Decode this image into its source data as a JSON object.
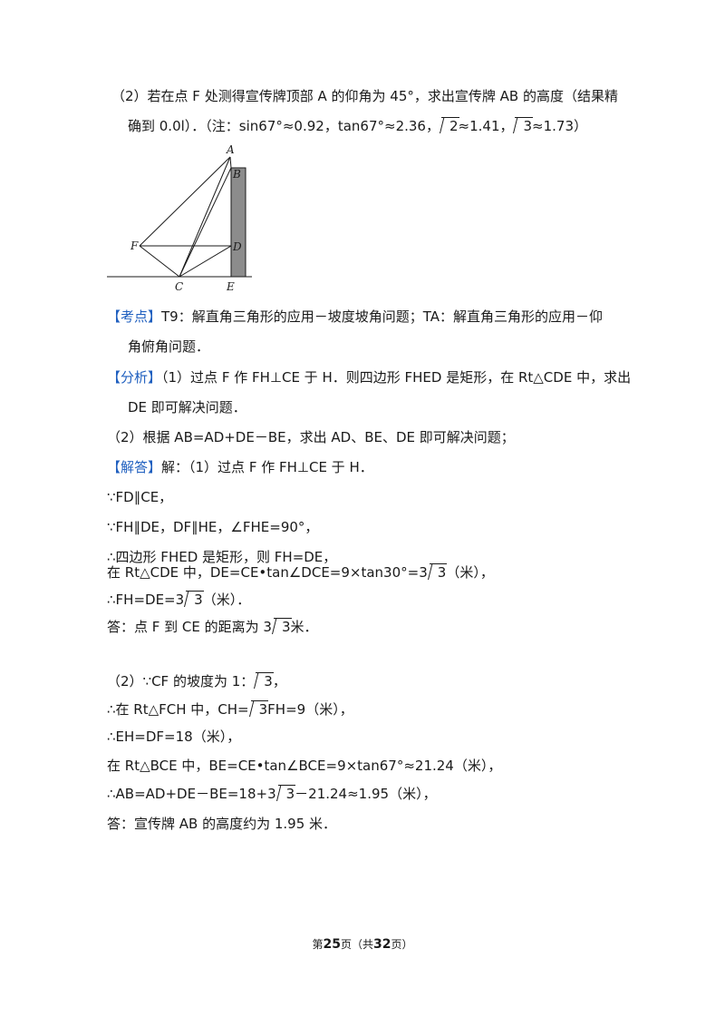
{
  "part2_question": {
    "line1": "（2）若在点 F 处测得宣传牌顶部 A 的仰角为 45°，求出宣传牌 AB 的高度（结果精",
    "line2_a": "确到 0.0l）．（注：sin67°≈0.92，tan67°≈2.36，",
    "sqrt2": "2",
    "line2_b": "≈1.41，",
    "sqrt3": "3",
    "line2_c": "≈1.73）"
  },
  "figure": {
    "labels": {
      "A": "A",
      "B": "B",
      "C": "C",
      "D": "D",
      "E": "E",
      "F": "F"
    },
    "colors": {
      "board_fill": "#8c8c8c",
      "line": "#1a1a1a"
    }
  },
  "kaodian": {
    "tag": "【考点】",
    "text1": "T9：解直角三角形的应用－坡度坡角问题；TA：解直角三角形的应用－仰",
    "text2": "角俯角问题．"
  },
  "fenxi": {
    "tag": "【分析】",
    "text1": "（1）过点 F 作 FH⊥CE 于 H．则四边形 FHED 是矩形，在 Rt△CDE 中，求出",
    "text2": "DE 即可解决问题．",
    "text3": "（2）根据 AB=AD+DE－BE，求出 AD、BE、DE 即可解决问题；"
  },
  "jieda": {
    "tag": "【解答】",
    "intro": "解：（1）过点 F 作 FH⊥CE 于 H．",
    "s1": "∵FD∥CE，",
    "s2": "∵FH∥DE，DF∥HE，∠FHE=90°，",
    "s3": "∴四边形 FHED 是矩形，则 FH=DE，",
    "s4_a": "在 Rt△CDE 中，DE=CE•tan∠DCE=9×tan30°=3",
    "s4_rad": "3",
    "s4_b": "（米），",
    "s5_a": "∴FH=DE=3",
    "s5_rad": "3",
    "s5_b": "（米）．",
    "s6_a": "答：点 F 到 CE 的距离为 3",
    "s6_rad": "3",
    "s6_b": "米．"
  },
  "part2": {
    "p1_a": "（2）∵CF 的坡度为 1：",
    "p1_rad": "3",
    "p1_b": "，",
    "p2_a": "∴在 Rt△FCH 中，CH=",
    "p2_rad": "3",
    "p2_b": "FH=9（米），",
    "p3": "∴EH=DF=18（米），",
    "p4": "在 Rt△BCE 中，BE=CE•tan∠BCE=9×tan67°≈21.24（米），",
    "p5_a": "∴AB=AD+DE－BE=18+3",
    "p5_rad": "3",
    "p5_b": "－21.24≈1.95（米），",
    "p6": "答：宣传牌 AB 的高度约为 1.95 米．"
  },
  "footer": {
    "pre": "第",
    "page": "25",
    "mid": "页（共",
    "total": "32",
    "post": "页）"
  }
}
